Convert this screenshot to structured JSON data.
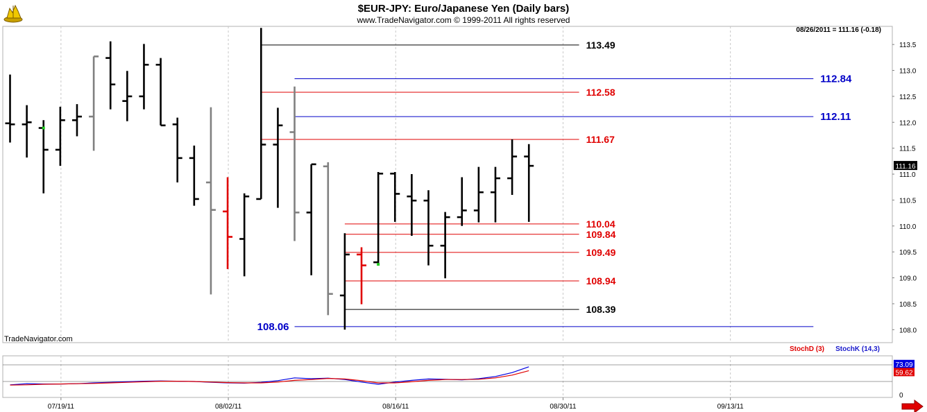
{
  "header": {
    "title": "$EUR-JPY:  Euro/Japanese Yen  (Daily bars)",
    "copyright": "www.TradeNavigator.com © 1999-2011 All rights reserved",
    "last_quote": "08/26/2011 = 111.16 (-0.18)",
    "watermark": "TradeNavigator.com"
  },
  "colors": {
    "up_bar": "#000000",
    "neutral_bar": "#808080",
    "down_bar": "#e00000",
    "level_red": "#e00000",
    "level_blue": "#0000c8",
    "level_black": "#000000",
    "stoch_k": "#0000e0",
    "stoch_d": "#e00000",
    "grid": "#c8c8c8"
  },
  "chart_data": [
    {
      "type": "bar",
      "subtype": "ohlc",
      "title": "$EUR-JPY:  Euro/Japanese Yen  (Daily bars)",
      "ylim": [
        107.75,
        113.85
      ],
      "y_ticks": [
        "113.5",
        "113.0",
        "112.5",
        "112.0",
        "111.5",
        "111.0",
        "110.5",
        "110.0",
        "109.5",
        "109.0",
        "108.5",
        "108.0"
      ],
      "x_ticks": [
        "07/19/11",
        "08/02/11",
        "08/16/11",
        "08/30/11",
        "09/13/11"
      ],
      "x_tick_bar_index": [
        3,
        13,
        23,
        33,
        43
      ],
      "last_price_label": "111.16",
      "grid": true,
      "bars": [
        {
          "o": 111.98,
          "h": 112.92,
          "l": 111.61,
          "c": 111.96,
          "color": "black"
        },
        {
          "o": 111.96,
          "h": 112.33,
          "l": 111.32,
          "c": 112.0,
          "color": "black"
        },
        {
          "o": 111.89,
          "h": 112.04,
          "l": 110.63,
          "c": 111.47,
          "color": "black"
        },
        {
          "o": 111.47,
          "h": 112.3,
          "l": 111.16,
          "c": 112.04,
          "color": "black"
        },
        {
          "o": 112.04,
          "h": 112.35,
          "l": 111.73,
          "c": 112.11,
          "color": "black"
        },
        {
          "o": 112.11,
          "h": 113.27,
          "l": 111.45,
          "c": 113.27,
          "color": "gray"
        },
        {
          "o": 113.24,
          "h": 113.56,
          "l": 112.25,
          "c": 112.73,
          "color": "black"
        },
        {
          "o": 112.41,
          "h": 112.99,
          "l": 112.02,
          "c": 112.5,
          "color": "black"
        },
        {
          "o": 112.5,
          "h": 113.51,
          "l": 112.25,
          "c": 113.11,
          "color": "black"
        },
        {
          "o": 113.11,
          "h": 113.24,
          "l": 111.94,
          "c": 111.94,
          "color": "black"
        },
        {
          "o": 111.96,
          "h": 112.09,
          "l": 110.84,
          "c": 111.31,
          "color": "black"
        },
        {
          "o": 111.31,
          "h": 111.55,
          "l": 110.39,
          "c": 110.52,
          "color": "black"
        },
        {
          "o": 110.84,
          "h": 112.29,
          "l": 108.68,
          "c": 110.31,
          "color": "gray"
        },
        {
          "o": 110.28,
          "h": 110.94,
          "l": 109.17,
          "c": 109.79,
          "color": "red"
        },
        {
          "o": 109.75,
          "h": 110.63,
          "l": 109.03,
          "c": 110.57,
          "color": "black"
        },
        {
          "o": 110.52,
          "h": 113.82,
          "l": 110.52,
          "c": 111.57,
          "color": "black"
        },
        {
          "o": 111.57,
          "h": 112.28,
          "l": 110.35,
          "c": 111.94,
          "color": "black"
        },
        {
          "o": 111.81,
          "h": 112.69,
          "l": 109.71,
          "c": 110.26,
          "color": "gray"
        },
        {
          "o": 110.26,
          "h": 111.19,
          "l": 109.05,
          "c": 111.19,
          "color": "black"
        },
        {
          "o": 111.15,
          "h": 111.23,
          "l": 108.28,
          "c": 108.69,
          "color": "gray"
        },
        {
          "o": 108.66,
          "h": 109.86,
          "l": 108.0,
          "c": 109.45,
          "color": "black"
        },
        {
          "o": 109.45,
          "h": 109.59,
          "l": 108.49,
          "c": 109.24,
          "color": "red"
        },
        {
          "o": 109.3,
          "h": 111.04,
          "l": 109.24,
          "c": 111.01,
          "color": "black"
        },
        {
          "o": 111.01,
          "h": 111.04,
          "l": 110.08,
          "c": 110.62,
          "color": "black"
        },
        {
          "o": 110.57,
          "h": 111.0,
          "l": 109.81,
          "c": 110.49,
          "color": "black"
        },
        {
          "o": 110.49,
          "h": 110.69,
          "l": 109.24,
          "c": 109.62,
          "color": "black"
        },
        {
          "o": 109.62,
          "h": 110.27,
          "l": 108.99,
          "c": 110.17,
          "color": "black"
        },
        {
          "o": 110.17,
          "h": 110.94,
          "l": 110.0,
          "c": 110.3,
          "color": "black"
        },
        {
          "o": 110.3,
          "h": 111.14,
          "l": 110.07,
          "c": 110.65,
          "color": "black"
        },
        {
          "o": 110.65,
          "h": 111.14,
          "l": 110.07,
          "c": 110.92,
          "color": "black"
        },
        {
          "o": 110.92,
          "h": 111.67,
          "l": 110.6,
          "c": 111.34,
          "color": "black"
        },
        {
          "o": 111.34,
          "h": 111.58,
          "l": 110.08,
          "c": 111.16,
          "color": "black"
        }
      ],
      "green_dots": [
        {
          "bar": 2,
          "price": 111.89
        },
        {
          "bar": 22,
          "price": 109.26
        }
      ],
      "levels": [
        {
          "label": "113.49",
          "value": 113.49,
          "color": "black",
          "from_bar": 15,
          "to_bar": 34,
          "label_side": "right"
        },
        {
          "label": "112.84",
          "value": 112.84,
          "color": "blue",
          "from_bar": 17,
          "to_bar": 48,
          "label_side": "right"
        },
        {
          "label": "112.58",
          "value": 112.58,
          "color": "red",
          "from_bar": 15,
          "to_bar": 34,
          "label_side": "right"
        },
        {
          "label": "112.11",
          "value": 112.11,
          "color": "blue",
          "from_bar": 17,
          "to_bar": 48,
          "label_side": "right"
        },
        {
          "label": "111.67",
          "value": 111.67,
          "color": "red",
          "from_bar": 15,
          "to_bar": 34,
          "label_side": "right"
        },
        {
          "label": "110.04",
          "value": 110.04,
          "color": "red",
          "from_bar": 20,
          "to_bar": 34,
          "label_side": "right"
        },
        {
          "label": "109.84",
          "value": 109.84,
          "color": "red",
          "from_bar": 20,
          "to_bar": 34,
          "label_side": "right"
        },
        {
          "label": "109.49",
          "value": 109.49,
          "color": "red",
          "from_bar": 20,
          "to_bar": 34,
          "label_side": "right"
        },
        {
          "label": "108.94",
          "value": 108.94,
          "color": "red",
          "from_bar": 20,
          "to_bar": 34,
          "label_side": "right"
        },
        {
          "label": "108.39",
          "value": 108.39,
          "color": "black",
          "from_bar": 20,
          "to_bar": 34,
          "label_side": "right"
        },
        {
          "label": "108.06",
          "value": 108.06,
          "color": "blue",
          "from_bar": 17,
          "to_bar": 48,
          "label_side": "left"
        }
      ]
    },
    {
      "type": "line",
      "legend": [
        "StochD (3)",
        "StochK (14,3)"
      ],
      "legend_placement": "top-right",
      "ylim": [
        0,
        100
      ],
      "y_ticks": [
        "0"
      ],
      "grid": true,
      "series": [
        {
          "name": "StochK (14,3)",
          "color": "blue",
          "last_label": "73.09",
          "values": [
            8,
            12,
            11,
            11,
            12,
            15,
            17,
            19,
            21,
            22,
            21,
            20,
            17,
            15,
            14,
            17,
            23,
            33,
            30,
            32,
            27,
            18,
            10,
            18,
            24,
            29,
            28,
            26,
            30,
            38,
            52,
            73
          ]
        },
        {
          "name": "StochD (3)",
          "color": "red",
          "last_label": "59.62",
          "values": [
            7,
            8,
            10,
            11,
            12,
            13,
            15,
            17,
            19,
            21,
            21,
            20,
            18,
            16,
            15,
            15,
            18,
            24,
            27,
            31,
            29,
            23,
            15,
            15,
            19,
            24,
            27,
            27,
            28,
            33,
            43,
            59
          ]
        }
      ]
    }
  ]
}
